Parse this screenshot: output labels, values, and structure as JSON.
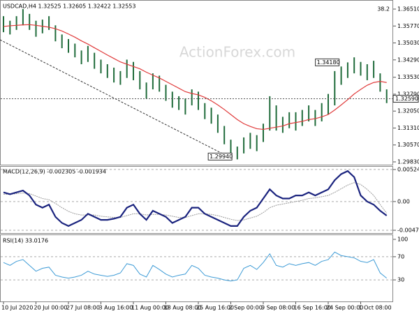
{
  "chart_data": {
    "type": "candlestick",
    "header": "USDCAD,H4  1.32525 1.32605 1.32422 1.32553",
    "watermark": "ActionForex.com",
    "marker": "38.2",
    "categories": [
      "10 Jul 2020",
      null,
      null,
      null,
      null,
      "20 Jul 00:00",
      null,
      null,
      null,
      null,
      "27 Jul 08:00",
      null,
      null,
      null,
      null,
      "3 Aug 16:00",
      null,
      null,
      null,
      null,
      "11 Aug 00:00",
      null,
      null,
      null,
      null,
      "18 Aug 08:00",
      null,
      null,
      null,
      null,
      "25 Aug 16:00",
      null,
      null,
      null,
      null,
      "2 Sep 00:00",
      null,
      null,
      null,
      null,
      "9 Sep 08:00",
      null,
      null,
      null,
      null,
      "16 Sep 16:00",
      null,
      null,
      null,
      null,
      "24 Sep 00:00",
      null,
      null,
      null,
      null,
      "1 Oct 08:00",
      null,
      null,
      null,
      null
    ],
    "high": [
      1.362,
      1.36,
      1.362,
      1.3651,
      1.363,
      1.36,
      1.3605,
      1.362,
      1.358,
      1.354,
      1.352,
      1.35,
      1.347,
      1.349,
      1.346,
      1.343,
      1.341,
      1.3395,
      1.338,
      1.343,
      1.342,
      1.338,
      1.333,
      1.337,
      1.336,
      1.332,
      1.329,
      1.327,
      1.326,
      1.33,
      1.329,
      1.324,
      1.322,
      1.319,
      1.314,
      1.308,
      1.305,
      1.309,
      1.311,
      1.31,
      1.315,
      1.327,
      1.323,
      1.318,
      1.32,
      1.32,
      1.321,
      1.323,
      1.321,
      1.324,
      1.328,
      1.338,
      1.34,
      1.3418,
      1.344,
      1.342,
      1.341,
      1.3425,
      1.337,
      1.33
    ],
    "low": [
      1.355,
      1.354,
      1.356,
      1.358,
      1.356,
      1.353,
      1.3545,
      1.356,
      1.351,
      1.348,
      1.346,
      1.344,
      1.341,
      1.342,
      1.339,
      1.337,
      1.335,
      1.333,
      1.332,
      1.335,
      1.334,
      1.33,
      1.326,
      1.33,
      1.329,
      1.325,
      1.322,
      1.321,
      1.319,
      1.323,
      1.321,
      1.317,
      1.315,
      1.311,
      1.306,
      1.3,
      1.2994,
      1.302,
      1.304,
      1.303,
      1.307,
      1.312,
      1.312,
      1.311,
      1.313,
      1.312,
      1.314,
      1.316,
      1.314,
      1.316,
      1.319,
      1.323,
      1.332,
      1.335,
      1.337,
      1.336,
      1.334,
      1.335,
      1.329,
      1.324
    ],
    "color": "#1f6b3a",
    "ma": {
      "color": "#e03a3a",
      "values": [
        1.3575,
        1.3578,
        1.358,
        1.3582,
        1.3583,
        1.358,
        1.3576,
        1.3572,
        1.3565,
        1.3555,
        1.3542,
        1.3528,
        1.3512,
        1.3498,
        1.3482,
        1.3466,
        1.345,
        1.3435,
        1.342,
        1.341,
        1.34,
        1.339,
        1.3375,
        1.3362,
        1.335,
        1.3335,
        1.332,
        1.3305,
        1.329,
        1.3282,
        1.3276,
        1.3265,
        1.325,
        1.3232,
        1.3212,
        1.319,
        1.3168,
        1.315,
        1.3138,
        1.3128,
        1.3125,
        1.313,
        1.3135,
        1.314,
        1.315,
        1.3155,
        1.316,
        1.3168,
        1.3172,
        1.318,
        1.319,
        1.321,
        1.3232,
        1.3255,
        1.328,
        1.33,
        1.3318,
        1.333,
        1.3335,
        1.333
      ]
    },
    "ylim": [
      1.29708,
      1.36846
    ],
    "yticks": [
      {
        "value": 1.3651,
        "label": "1.36510"
      },
      {
        "value": 1.3577,
        "label": "1.35770"
      },
      {
        "value": 1.3503,
        "label": "1.35030"
      },
      {
        "value": 1.3429,
        "label": "1.34290"
      },
      {
        "value": 1.3353,
        "label": "1.33530"
      },
      {
        "value": 1.3279,
        "label": "1.32790"
      },
      {
        "value": 1.3205,
        "label": "1.32050"
      },
      {
        "value": 1.3131,
        "label": "1.31310"
      },
      {
        "value": 1.3057,
        "label": "1.30570"
      },
      {
        "value": 1.2983,
        "label": "1.29830"
      }
    ],
    "current": {
      "value": 1.3259,
      "label": "1.32590"
    },
    "annotations": [
      {
        "value": 1.3418,
        "label": "1.34180"
      },
      {
        "value": 1.2994,
        "label": "1.29940"
      }
    ],
    "macd": {
      "title": "MACD(12,26,9) -0.002305 -0.001934",
      "ylim": [
        -0.00504,
        0.00558
      ],
      "yticks": [
        0.005245,
        {
          "value": 0,
          "label": "0.00"
        },
        -0.0047
      ],
      "series": [
        {
          "name": "MACD",
          "color": "#1a237e",
          "values": [
            0.0015,
            0.0012,
            0.0015,
            0.0018,
            0.001,
            -0.0005,
            -0.001,
            -0.0005,
            -0.0025,
            -0.0035,
            -0.004,
            -0.0035,
            -0.003,
            -0.002,
            -0.0025,
            -0.003,
            -0.003,
            -0.0028,
            -0.0025,
            -0.001,
            -0.0005,
            -0.002,
            -0.003,
            -0.0015,
            -0.002,
            -0.0025,
            -0.0035,
            -0.003,
            -0.0025,
            -0.001,
            -0.001,
            -0.002,
            -0.0025,
            -0.003,
            -0.0035,
            -0.004,
            -0.004,
            -0.0025,
            -0.0015,
            -0.001,
            0.0005,
            0.002,
            0.001,
            0.0005,
            0.0005,
            0.001,
            0.001,
            0.0015,
            0.001,
            0.0015,
            0.002,
            0.0035,
            0.0045,
            0.005,
            0.004,
            0.001,
            0,
            -0.0005,
            -0.0015,
            -0.0023
          ]
        },
        {
          "name": "Signal",
          "color": "#9a9a9a",
          "values": [
            0.0012,
            0.0012,
            0.0013,
            0.0014,
            0.0013,
            0.0009,
            0.0005,
            0.0003,
            -0.0003,
            -0.001,
            -0.0016,
            -0.002,
            -0.0022,
            -0.0022,
            -0.0022,
            -0.0024,
            -0.0025,
            -0.0026,
            -0.0026,
            -0.0023,
            -0.002,
            -0.002,
            -0.0022,
            -0.0021,
            -0.0021,
            -0.0022,
            -0.0024,
            -0.0026,
            -0.0026,
            -0.0023,
            -0.002,
            -0.002,
            -0.0021,
            -0.0023,
            -0.0026,
            -0.0029,
            -0.0031,
            -0.003,
            -0.0027,
            -0.0024,
            -0.0018,
            -0.001,
            -0.0006,
            -0.0004,
            -0.0002,
            0,
            0.0002,
            0.0005,
            0.0006,
            0.0008,
            0.001,
            0.0015,
            0.0021,
            0.0027,
            0.0031,
            0.0028,
            0.002,
            0.001,
            -0.0005,
            -0.0019
          ]
        }
      ]
    },
    "rsi": {
      "title": "RSI(14) 33.0176",
      "ylim": [
        0,
        100
      ],
      "yticks": [
        100,
        70,
        30
      ],
      "color": "#3d9bd6",
      "values": [
        60,
        55,
        62,
        65,
        55,
        45,
        50,
        52,
        38,
        35,
        33,
        35,
        38,
        45,
        40,
        38,
        36,
        38,
        42,
        58,
        55,
        40,
        35,
        55,
        48,
        40,
        35,
        38,
        40,
        55,
        50,
        38,
        35,
        33,
        30,
        28,
        30,
        50,
        55,
        48,
        60,
        75,
        55,
        52,
        58,
        55,
        58,
        60,
        55,
        62,
        65,
        78,
        72,
        70,
        68,
        62,
        60,
        65,
        42,
        33
      ]
    }
  }
}
